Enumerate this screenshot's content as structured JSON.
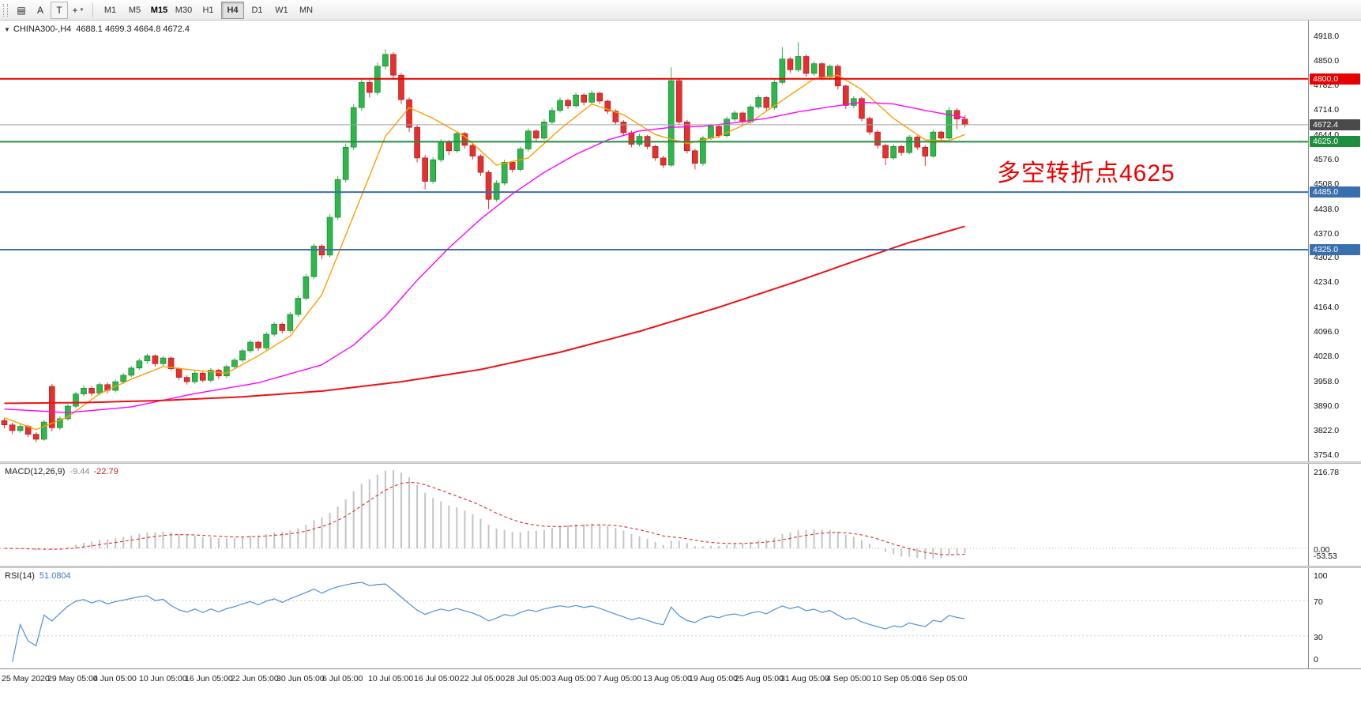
{
  "toolbar": {
    "tools": [
      {
        "name": "objects-list",
        "glyph": "▤"
      },
      {
        "name": "arrow-tool",
        "glyph": "A"
      },
      {
        "name": "text-tool",
        "glyph": "T",
        "boxed": true
      },
      {
        "name": "crosshair-tool",
        "glyph": "+",
        "caret": "▼"
      }
    ],
    "timeframes": [
      {
        "label": "M1"
      },
      {
        "label": "M5"
      },
      {
        "label": "M15",
        "emphasis": true
      },
      {
        "label": "M30"
      },
      {
        "label": "H1"
      },
      {
        "label": "H4",
        "active": true
      },
      {
        "label": "D1"
      },
      {
        "label": "W1"
      },
      {
        "label": "MN"
      }
    ]
  },
  "chart": {
    "dropdown_icon": "▼",
    "symbol_title": "CHINA300-,H4",
    "ohlc_text": "4688.1 4699.3 4664.8 4672.4"
  },
  "chart_data": {
    "type": "candlestick",
    "symbol": "CHINA300-",
    "timeframe": "H4",
    "y_range": [
      3754,
      4918
    ],
    "y_axis_labels": [
      "4918.0",
      "4850.0",
      "4782.0",
      "4714.0",
      "4644.0",
      "4576.0",
      "4508.0",
      "4438.0",
      "4370.0",
      "4302.0",
      "4234.0",
      "4164.0",
      "4096.0",
      "4028.0",
      "3958.0",
      "3890.0",
      "3822.0",
      "3754.0"
    ],
    "x_axis_labels": [
      "25 May 2020",
      "29 May 05:00",
      "4 Jun 05:00",
      "10 Jun 05:00",
      "16 Jun 05:00",
      "22 Jun 05:00",
      "30 Jun 05:00",
      "6 Jul 05:00",
      "10 Jul 05:00",
      "16 Jul 05:00",
      "22 Jul 05:00",
      "28 Jul 05:00",
      "3 Aug 05:00",
      "7 Aug 05:00",
      "13 Aug 05:00",
      "19 Aug 05:00",
      "25 Aug 05:00",
      "31 Aug 05:00",
      "4 Sep 05:00",
      "10 Sep 05:00",
      "16 Sep 05:00"
    ],
    "candles": [
      [
        3850,
        3856,
        3828,
        3838
      ],
      [
        3838,
        3844,
        3812,
        3822
      ],
      [
        3822,
        3840,
        3816,
        3834
      ],
      [
        3834,
        3838,
        3804,
        3812
      ],
      [
        3812,
        3818,
        3790,
        3798
      ],
      [
        3798,
        3852,
        3794,
        3846
      ],
      [
        3945,
        3952,
        3820,
        3830
      ],
      [
        3830,
        3862,
        3824,
        3855
      ],
      [
        3855,
        3896,
        3850,
        3890
      ],
      [
        3890,
        3930,
        3884,
        3924
      ],
      [
        3924,
        3948,
        3918,
        3940
      ],
      [
        3940,
        3946,
        3918,
        3926
      ],
      [
        3926,
        3956,
        3920,
        3950
      ],
      [
        3950,
        3956,
        3926,
        3934
      ],
      [
        3934,
        3964,
        3928,
        3958
      ],
      [
        3958,
        3982,
        3952,
        3976
      ],
      [
        3976,
        4002,
        3970,
        3996
      ],
      [
        3996,
        4022,
        3990,
        4016
      ],
      [
        4016,
        4036,
        4008,
        4030
      ],
      [
        4030,
        4034,
        4000,
        4008
      ],
      [
        4008,
        4030,
        4002,
        4024
      ],
      [
        4024,
        4028,
        3988,
        3994
      ],
      [
        3994,
        3998,
        3962,
        3970
      ],
      [
        3970,
        3976,
        3950,
        3958
      ],
      [
        3958,
        3988,
        3952,
        3982
      ],
      [
        3982,
        3986,
        3956,
        3962
      ],
      [
        3962,
        3996,
        3956,
        3990
      ],
      [
        3990,
        3994,
        3966,
        3974
      ],
      [
        3974,
        4006,
        3968,
        4000
      ],
      [
        4000,
        4024,
        3994,
        4018
      ],
      [
        4018,
        4050,
        4012,
        4044
      ],
      [
        4044,
        4074,
        4038,
        4068
      ],
      [
        4068,
        4072,
        4044,
        4052
      ],
      [
        4052,
        4096,
        4046,
        4090
      ],
      [
        4090,
        4124,
        4084,
        4118
      ],
      [
        4118,
        4122,
        4092,
        4100
      ],
      [
        4100,
        4152,
        4094,
        4145
      ],
      [
        4145,
        4198,
        4138,
        4190
      ],
      [
        4190,
        4258,
        4184,
        4250
      ],
      [
        4250,
        4342,
        4244,
        4335
      ],
      [
        4335,
        4340,
        4298,
        4310
      ],
      [
        4310,
        4424,
        4304,
        4415
      ],
      [
        4415,
        4530,
        4408,
        4520
      ],
      [
        4520,
        4620,
        4512,
        4610
      ],
      [
        4610,
        4730,
        4602,
        4720
      ],
      [
        4720,
        4800,
        4712,
        4790
      ],
      [
        4790,
        4798,
        4748,
        4762
      ],
      [
        4762,
        4845,
        4755,
        4835
      ],
      [
        4835,
        4882,
        4826,
        4868
      ],
      [
        4868,
        4874,
        4798,
        4810
      ],
      [
        4810,
        4816,
        4730,
        4742
      ],
      [
        4742,
        4748,
        4652,
        4665
      ],
      [
        4665,
        4672,
        4568,
        4580
      ],
      [
        4580,
        4588,
        4492,
        4515
      ],
      [
        4515,
        4582,
        4508,
        4575
      ],
      [
        4575,
        4632,
        4568,
        4625
      ],
      [
        4625,
        4630,
        4588,
        4600
      ],
      [
        4600,
        4655,
        4594,
        4648
      ],
      [
        4648,
        4652,
        4606,
        4615
      ],
      [
        4615,
        4620,
        4576,
        4585
      ],
      [
        4585,
        4590,
        4530,
        4540
      ],
      [
        4540,
        4546,
        4438,
        4465
      ],
      [
        4465,
        4518,
        4458,
        4510
      ],
      [
        4510,
        4575,
        4504,
        4568
      ],
      [
        4568,
        4572,
        4540,
        4548
      ],
      [
        4548,
        4612,
        4542,
        4605
      ],
      [
        4605,
        4662,
        4598,
        4655
      ],
      [
        4655,
        4660,
        4626,
        4635
      ],
      [
        4635,
        4688,
        4630,
        4680
      ],
      [
        4680,
        4720,
        4674,
        4712
      ],
      [
        4712,
        4748,
        4706,
        4740
      ],
      [
        4740,
        4745,
        4716,
        4725
      ],
      [
        4725,
        4762,
        4720,
        4755
      ],
      [
        4755,
        4760,
        4726,
        4735
      ],
      [
        4735,
        4768,
        4730,
        4760
      ],
      [
        4760,
        4764,
        4730,
        4738
      ],
      [
        4738,
        4742,
        4702,
        4710
      ],
      [
        4710,
        4715,
        4672,
        4680
      ],
      [
        4680,
        4685,
        4642,
        4650
      ],
      [
        4650,
        4656,
        4610,
        4618
      ],
      [
        4618,
        4648,
        4612,
        4640
      ],
      [
        4640,
        4644,
        4604,
        4612
      ],
      [
        4612,
        4616,
        4572,
        4580
      ],
      [
        4580,
        4586,
        4552,
        4560
      ],
      [
        4560,
        4832,
        4554,
        4795
      ],
      [
        4795,
        4800,
        4672,
        4680
      ],
      [
        4680,
        4686,
        4592,
        4600
      ],
      [
        4600,
        4606,
        4548,
        4565
      ],
      [
        4565,
        4642,
        4558,
        4635
      ],
      [
        4635,
        4675,
        4630,
        4668
      ],
      [
        4668,
        4672,
        4635,
        4642
      ],
      [
        4642,
        4695,
        4636,
        4688
      ],
      [
        4688,
        4712,
        4682,
        4705
      ],
      [
        4705,
        4710,
        4672,
        4680
      ],
      [
        4680,
        4728,
        4674,
        4722
      ],
      [
        4722,
        4755,
        4716,
        4748
      ],
      [
        4748,
        4752,
        4712,
        4720
      ],
      [
        4720,
        4798,
        4714,
        4790
      ],
      [
        4790,
        4888,
        4784,
        4855
      ],
      [
        4855,
        4860,
        4816,
        4825
      ],
      [
        4825,
        4902,
        4818,
        4862
      ],
      [
        4862,
        4868,
        4806,
        4815
      ],
      [
        4815,
        4848,
        4808,
        4842
      ],
      [
        4842,
        4846,
        4796,
        4805
      ],
      [
        4805,
        4840,
        4798,
        4835
      ],
      [
        4835,
        4840,
        4770,
        4780
      ],
      [
        4780,
        4784,
        4716,
        4726
      ],
      [
        4726,
        4752,
        4718,
        4745
      ],
      [
        4745,
        4750,
        4682,
        4690
      ],
      [
        4690,
        4695,
        4644,
        4652
      ],
      [
        4652,
        4658,
        4606,
        4615
      ],
      [
        4615,
        4620,
        4560,
        4580
      ],
      [
        4580,
        4618,
        4574,
        4612
      ],
      [
        4612,
        4616,
        4586,
        4595
      ],
      [
        4595,
        4644,
        4590,
        4638
      ],
      [
        4638,
        4642,
        4602,
        4610
      ],
      [
        4610,
        4615,
        4558,
        4585
      ],
      [
        4585,
        4658,
        4580,
        4652
      ],
      [
        4652,
        4656,
        4626,
        4635
      ],
      [
        4635,
        4722,
        4630,
        4712
      ],
      [
        4712,
        4718,
        4660,
        4688
      ],
      [
        4688.1,
        4699.3,
        4664.8,
        4672.4
      ]
    ],
    "overlays": [
      {
        "name": "ma-fast-orange",
        "color": "#ff9d00",
        "width": 1.4,
        "anchors": [
          [
            0,
            3858
          ],
          [
            4,
            3825
          ],
          [
            8,
            3860
          ],
          [
            12,
            3925
          ],
          [
            16,
            3965
          ],
          [
            20,
            4000
          ],
          [
            24,
            3990
          ],
          [
            28,
            3982
          ],
          [
            32,
            4030
          ],
          [
            36,
            4085
          ],
          [
            40,
            4200
          ],
          [
            44,
            4420
          ],
          [
            48,
            4640
          ],
          [
            51,
            4720
          ],
          [
            54,
            4690
          ],
          [
            58,
            4640
          ],
          [
            62,
            4560
          ],
          [
            66,
            4580
          ],
          [
            70,
            4660
          ],
          [
            74,
            4730
          ],
          [
            78,
            4700
          ],
          [
            82,
            4645
          ],
          [
            86,
            4620
          ],
          [
            90,
            4640
          ],
          [
            94,
            4680
          ],
          [
            98,
            4740
          ],
          [
            102,
            4800
          ],
          [
            105,
            4810
          ],
          [
            108,
            4770
          ],
          [
            112,
            4690
          ],
          [
            116,
            4630
          ],
          [
            119,
            4628
          ],
          [
            121,
            4645
          ]
        ]
      },
      {
        "name": "ma-mid-magenta",
        "color": "#ff00ff",
        "width": 1.4,
        "anchors": [
          [
            0,
            3882
          ],
          [
            8,
            3872
          ],
          [
            16,
            3888
          ],
          [
            24,
            3925
          ],
          [
            32,
            3955
          ],
          [
            40,
            4005
          ],
          [
            44,
            4060
          ],
          [
            48,
            4140
          ],
          [
            52,
            4240
          ],
          [
            56,
            4330
          ],
          [
            60,
            4410
          ],
          [
            64,
            4480
          ],
          [
            68,
            4540
          ],
          [
            72,
            4590
          ],
          [
            76,
            4630
          ],
          [
            80,
            4655
          ],
          [
            84,
            4665
          ],
          [
            88,
            4668
          ],
          [
            92,
            4678
          ],
          [
            96,
            4690
          ],
          [
            100,
            4708
          ],
          [
            104,
            4722
          ],
          [
            108,
            4735
          ],
          [
            112,
            4730
          ],
          [
            116,
            4712
          ],
          [
            121,
            4692
          ]
        ]
      },
      {
        "name": "ma-slow-red",
        "color": "#ee1111",
        "width": 2,
        "anchors": [
          [
            0,
            3898
          ],
          [
            10,
            3900
          ],
          [
            20,
            3906
          ],
          [
            30,
            3916
          ],
          [
            40,
            3932
          ],
          [
            50,
            3958
          ],
          [
            60,
            3992
          ],
          [
            70,
            4040
          ],
          [
            80,
            4098
          ],
          [
            90,
            4165
          ],
          [
            100,
            4238
          ],
          [
            108,
            4300
          ],
          [
            114,
            4345
          ],
          [
            121,
            4390
          ]
        ]
      }
    ],
    "levels": [
      {
        "price": 4800.0,
        "label": "4800.0",
        "color": "#e60000",
        "width": 2
      },
      {
        "price": 4672.4,
        "label": "4672.4",
        "color": "#a0a0a0",
        "width": 1,
        "tag_bg": "#4a4a4a",
        "current": true
      },
      {
        "price": 4625.0,
        "label": "4625.0",
        "color": "#1e8f3e",
        "width": 2
      },
      {
        "price": 4485.0,
        "label": "4485.0",
        "color": "#3a6fad",
        "width": 2
      },
      {
        "price": 4325.0,
        "label": "4325.0",
        "color": "#3a6fad",
        "width": 2
      }
    ],
    "annotation": {
      "text": "多空转折点4625",
      "color": "#ee0000"
    }
  },
  "macd": {
    "label": "MACD(12,26,9)",
    "value_main": "-9.44",
    "value_signal": "-22.79",
    "axis_labels": [
      "216.78",
      "0.00",
      "-53.53"
    ],
    "hist_color": "#c4c4c4",
    "signal_color": "#d93030"
  },
  "rsi": {
    "label": "RSI(14)",
    "value": "51.0804",
    "axis_labels": [
      "100",
      "70",
      "30",
      "0"
    ],
    "levels": [
      70,
      30
    ],
    "line_color": "#4f8fd4"
  },
  "colors": {
    "up": "#2eb84b",
    "up_dark": "#16742c",
    "down": "#e53030",
    "down_dark": "#a21616"
  }
}
